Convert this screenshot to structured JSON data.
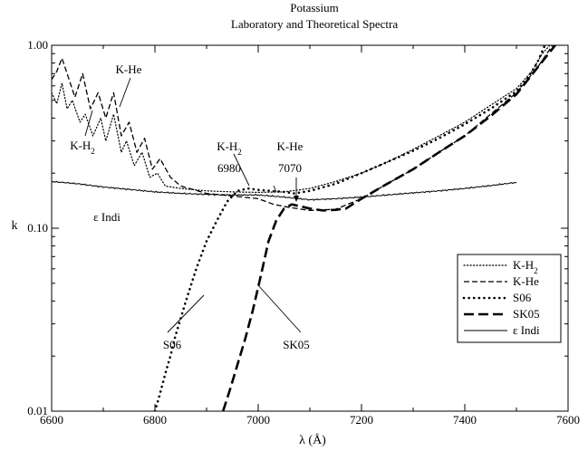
{
  "chart_data": {
    "type": "line",
    "title": "Potassium",
    "subtitle": "Laboratory and Theoretical Spectra",
    "xlabel": "λ (Å)",
    "ylabel": "k",
    "xlim": [
      6600,
      7600
    ],
    "ylim": [
      0.01,
      1.0
    ],
    "yscale": "log",
    "grid": false,
    "legend_position": "right",
    "x_ticks": [
      6600,
      6800,
      7000,
      7200,
      7400,
      7600
    ],
    "x_tick_labels": [
      "6600",
      "6800",
      "7000",
      "7200",
      "7400",
      "7600"
    ],
    "y_ticks": [
      0.01,
      0.1,
      1.0
    ],
    "y_tick_labels": [
      "0.01",
      "0.10",
      "1.00"
    ],
    "series": [
      {
        "name": "K-H",
        "name_sub": "2",
        "style": "dotted-thin",
        "points": [
          [
            6600,
            0.55
          ],
          [
            6610,
            0.48
          ],
          [
            6620,
            0.62
          ],
          [
            6630,
            0.45
          ],
          [
            6640,
            0.5
          ],
          [
            6655,
            0.38
          ],
          [
            6665,
            0.42
          ],
          [
            6680,
            0.32
          ],
          [
            6695,
            0.4
          ],
          [
            6705,
            0.3
          ],
          [
            6720,
            0.42
          ],
          [
            6735,
            0.26
          ],
          [
            6745,
            0.3
          ],
          [
            6760,
            0.22
          ],
          [
            6775,
            0.26
          ],
          [
            6790,
            0.19
          ],
          [
            6805,
            0.2
          ],
          [
            6820,
            0.17
          ],
          [
            6850,
            0.165
          ],
          [
            6900,
            0.16
          ],
          [
            6950,
            0.158
          ],
          [
            7000,
            0.157
          ],
          [
            7050,
            0.158
          ],
          [
            7100,
            0.165
          ],
          [
            7150,
            0.18
          ],
          [
            7200,
            0.2
          ],
          [
            7250,
            0.23
          ],
          [
            7300,
            0.27
          ],
          [
            7350,
            0.32
          ],
          [
            7400,
            0.38
          ],
          [
            7450,
            0.47
          ],
          [
            7500,
            0.58
          ],
          [
            7530,
            0.72
          ],
          [
            7550,
            0.9
          ],
          [
            7565,
            1.0
          ]
        ]
      },
      {
        "name": "K-He",
        "style": "dashed-thin",
        "points": [
          [
            6600,
            0.65
          ],
          [
            6610,
            0.72
          ],
          [
            6620,
            0.85
          ],
          [
            6630,
            0.7
          ],
          [
            6645,
            0.52
          ],
          [
            6660,
            0.7
          ],
          [
            6675,
            0.45
          ],
          [
            6690,
            0.55
          ],
          [
            6705,
            0.4
          ],
          [
            6720,
            0.55
          ],
          [
            6735,
            0.32
          ],
          [
            6750,
            0.38
          ],
          [
            6765,
            0.26
          ],
          [
            6780,
            0.31
          ],
          [
            6795,
            0.21
          ],
          [
            6810,
            0.24
          ],
          [
            6830,
            0.19
          ],
          [
            6850,
            0.17
          ],
          [
            6900,
            0.155
          ],
          [
            6950,
            0.15
          ],
          [
            7000,
            0.145
          ],
          [
            7030,
            0.135
          ],
          [
            7060,
            0.13
          ],
          [
            7100,
            0.125
          ],
          [
            7150,
            0.127
          ],
          [
            7200,
            0.145
          ],
          [
            7250,
            0.175
          ],
          [
            7300,
            0.21
          ],
          [
            7350,
            0.26
          ],
          [
            7400,
            0.32
          ],
          [
            7450,
            0.42
          ],
          [
            7500,
            0.55
          ],
          [
            7540,
            0.75
          ],
          [
            7570,
            1.0
          ]
        ]
      },
      {
        "name": "S06",
        "style": "dotted-thick",
        "points": [
          [
            6800,
            0.01
          ],
          [
            6810,
            0.0125
          ],
          [
            6820,
            0.016
          ],
          [
            6830,
            0.02
          ],
          [
            6840,
            0.026
          ],
          [
            6860,
            0.04
          ],
          [
            6880,
            0.06
          ],
          [
            6900,
            0.085
          ],
          [
            6920,
            0.11
          ],
          [
            6940,
            0.14
          ],
          [
            6960,
            0.16
          ],
          [
            6980,
            0.165
          ],
          [
            7000,
            0.162
          ],
          [
            7050,
            0.158
          ],
          [
            7070,
            0.155
          ],
          [
            7100,
            0.16
          ],
          [
            7150,
            0.175
          ],
          [
            7200,
            0.2
          ],
          [
            7250,
            0.23
          ],
          [
            7300,
            0.265
          ],
          [
            7350,
            0.31
          ],
          [
            7400,
            0.37
          ],
          [
            7450,
            0.45
          ],
          [
            7500,
            0.56
          ],
          [
            7520,
            0.65
          ],
          [
            7540,
            0.8
          ],
          [
            7555,
            1.0
          ]
        ]
      },
      {
        "name": "SK05",
        "style": "dashed-thick",
        "points": [
          [
            6932,
            0.01
          ],
          [
            6945,
            0.013
          ],
          [
            6960,
            0.018
          ],
          [
            6975,
            0.025
          ],
          [
            6990,
            0.036
          ],
          [
            7005,
            0.055
          ],
          [
            7020,
            0.085
          ],
          [
            7035,
            0.11
          ],
          [
            7050,
            0.128
          ],
          [
            7065,
            0.135
          ],
          [
            7080,
            0.132
          ],
          [
            7100,
            0.128
          ],
          [
            7125,
            0.125
          ],
          [
            7150,
            0.126
          ],
          [
            7170,
            0.128
          ],
          [
            7200,
            0.145
          ],
          [
            7250,
            0.175
          ],
          [
            7300,
            0.21
          ],
          [
            7350,
            0.26
          ],
          [
            7400,
            0.32
          ],
          [
            7450,
            0.41
          ],
          [
            7500,
            0.54
          ],
          [
            7540,
            0.75
          ],
          [
            7575,
            1.0
          ]
        ]
      },
      {
        "name": "ε Indi",
        "style": "solid",
        "points": [
          [
            6600,
            0.18
          ],
          [
            6650,
            0.175
          ],
          [
            6700,
            0.168
          ],
          [
            6750,
            0.163
          ],
          [
            6800,
            0.158
          ],
          [
            6850,
            0.155
          ],
          [
            6900,
            0.153
          ],
          [
            6950,
            0.152
          ],
          [
            7000,
            0.152
          ],
          [
            7050,
            0.148
          ],
          [
            7100,
            0.143
          ],
          [
            7150,
            0.145
          ],
          [
            7200,
            0.148
          ],
          [
            7250,
            0.152
          ],
          [
            7300,
            0.156
          ],
          [
            7350,
            0.16
          ],
          [
            7400,
            0.165
          ],
          [
            7450,
            0.171
          ],
          [
            7500,
            0.178
          ]
        ]
      }
    ],
    "annotations": [
      {
        "text": "K-He",
        "x": 6740,
        "y": 0.8
      },
      {
        "text": "K-H",
        "sub": "2",
        "x": 6660,
        "y": 0.26
      },
      {
        "text": "K-H",
        "sub": "2",
        "x": 6975,
        "y": 0.42
      },
      {
        "text": "6980",
        "x": 6975,
        "y": 0.3
      },
      {
        "text": "K-He",
        "x": 7070,
        "y": 0.3
      },
      {
        "text": "7070",
        "x": 7070,
        "y": 0.22
      },
      {
        "text": "ε Indi",
        "x": 6650,
        "y": 0.11
      },
      {
        "text": "S06",
        "x": 6750,
        "y": 0.03
      },
      {
        "text": "SK05",
        "x": 7050,
        "y": 0.03
      }
    ]
  }
}
